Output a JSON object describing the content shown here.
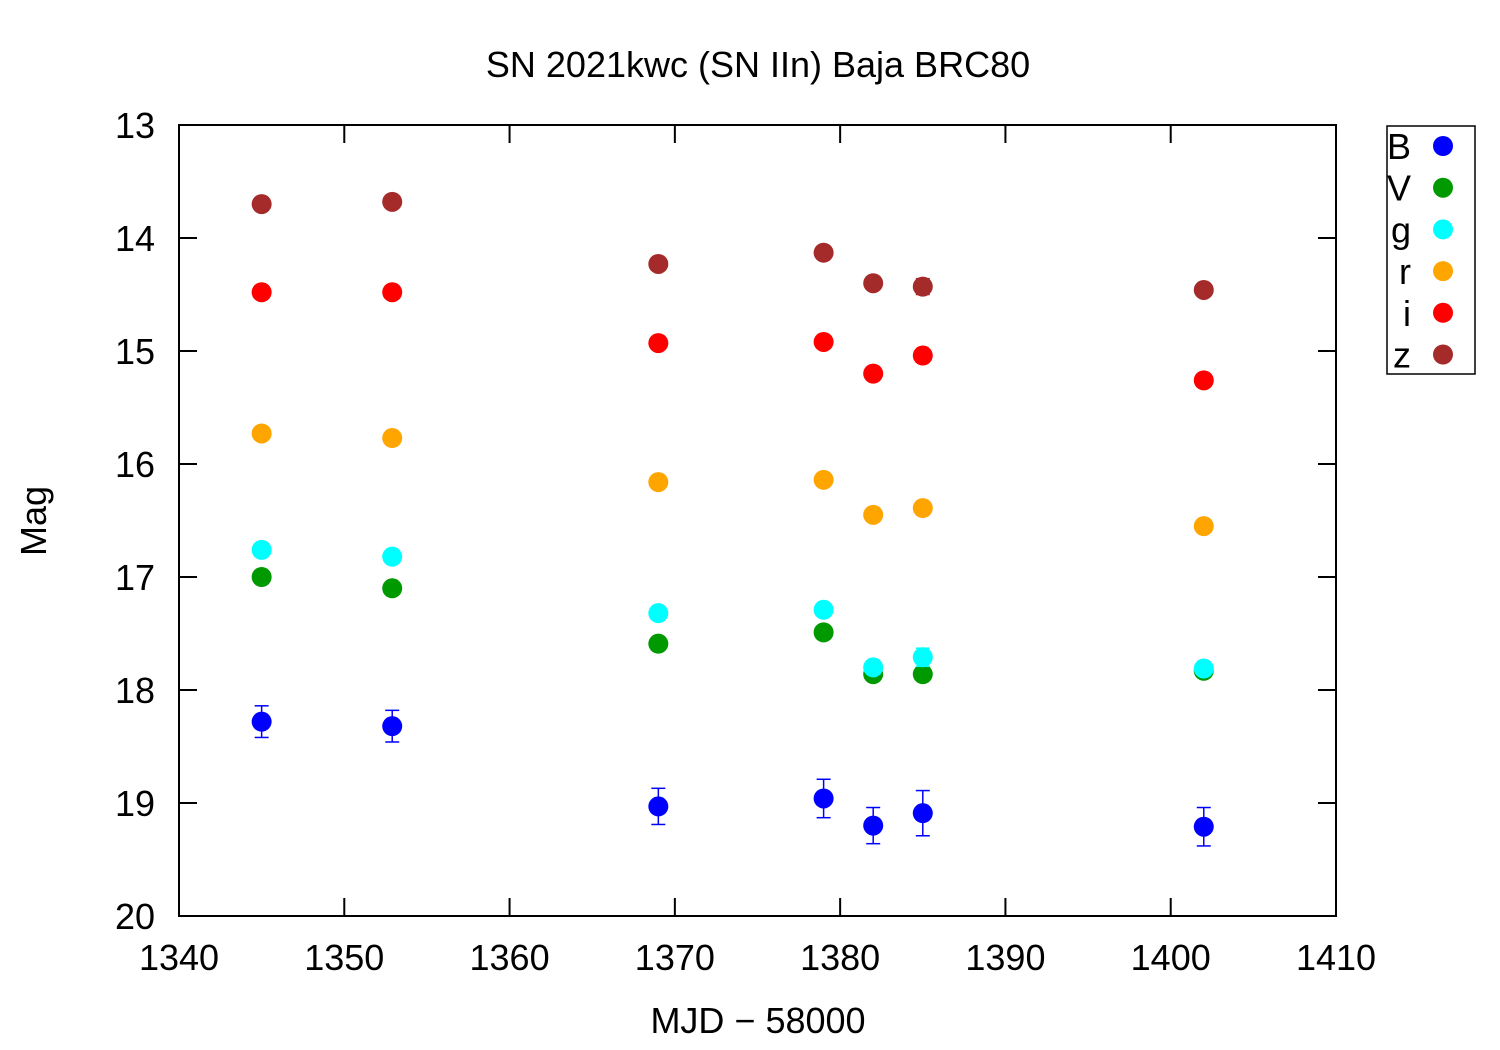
{
  "chart_data": {
    "type": "scatter",
    "title": "SN 2021kwc (SN IIn) Baja BRC80",
    "xlabel": "MJD − 58000",
    "ylabel": "Mag",
    "xlim": [
      1340,
      1410
    ],
    "ylim": [
      20,
      13
    ],
    "y_inverted": true,
    "x_ticks": [
      1340,
      1350,
      1360,
      1370,
      1380,
      1390,
      1400,
      1410
    ],
    "y_ticks": [
      13,
      14,
      15,
      16,
      17,
      18,
      19,
      20
    ],
    "legend_position": "outside-right-top",
    "grid": false,
    "series": [
      {
        "name": "B",
        "color": "#0000ff",
        "points": [
          {
            "x": 1345,
            "y": 18.28,
            "err": 0.14
          },
          {
            "x": 1352.9,
            "y": 18.32,
            "err": 0.14
          },
          {
            "x": 1369,
            "y": 19.03,
            "err": 0.16
          },
          {
            "x": 1379,
            "y": 18.96,
            "err": 0.17
          },
          {
            "x": 1382,
            "y": 19.2,
            "err": 0.16
          },
          {
            "x": 1385,
            "y": 19.09,
            "err": 0.2
          },
          {
            "x": 1402,
            "y": 19.21,
            "err": 0.17
          }
        ]
      },
      {
        "name": "V",
        "color": "#009900",
        "points": [
          {
            "x": 1345,
            "y": 17.0,
            "err": 0.03
          },
          {
            "x": 1352.9,
            "y": 17.1,
            "err": 0.03
          },
          {
            "x": 1369,
            "y": 17.59,
            "err": 0.04
          },
          {
            "x": 1379,
            "y": 17.49,
            "err": 0.04
          },
          {
            "x": 1382,
            "y": 17.86,
            "err": 0.05
          },
          {
            "x": 1385,
            "y": 17.86,
            "err": 0.05
          },
          {
            "x": 1402,
            "y": 17.83,
            "err": 0.05
          }
        ]
      },
      {
        "name": "g",
        "color": "#00ffff",
        "points": [
          {
            "x": 1345,
            "y": 16.76,
            "err": 0.03
          },
          {
            "x": 1352.9,
            "y": 16.82,
            "err": 0.03
          },
          {
            "x": 1369,
            "y": 17.32,
            "err": 0.04
          },
          {
            "x": 1379,
            "y": 17.29,
            "err": 0.04
          },
          {
            "x": 1382,
            "y": 17.8,
            "err": 0.05
          },
          {
            "x": 1385,
            "y": 17.71,
            "err": 0.08
          },
          {
            "x": 1402,
            "y": 17.81,
            "err": 0.05
          }
        ]
      },
      {
        "name": "r",
        "color": "#ffa500",
        "points": [
          {
            "x": 1345,
            "y": 15.73,
            "err": 0.02
          },
          {
            "x": 1352.9,
            "y": 15.77,
            "err": 0.02
          },
          {
            "x": 1369,
            "y": 16.16,
            "err": 0.02
          },
          {
            "x": 1379,
            "y": 16.14,
            "err": 0.02
          },
          {
            "x": 1382,
            "y": 16.45,
            "err": 0.03
          },
          {
            "x": 1385,
            "y": 16.39,
            "err": 0.03
          },
          {
            "x": 1402,
            "y": 16.55,
            "err": 0.03
          }
        ]
      },
      {
        "name": "i",
        "color": "#ff0000",
        "points": [
          {
            "x": 1345,
            "y": 14.48,
            "err": 0.02
          },
          {
            "x": 1352.9,
            "y": 14.48,
            "err": 0.02
          },
          {
            "x": 1369,
            "y": 14.93,
            "err": 0.02
          },
          {
            "x": 1379,
            "y": 14.92,
            "err": 0.02
          },
          {
            "x": 1382,
            "y": 15.2,
            "err": 0.03
          },
          {
            "x": 1385,
            "y": 15.04,
            "err": 0.04
          },
          {
            "x": 1402,
            "y": 15.26,
            "err": 0.03
          }
        ]
      },
      {
        "name": "z",
        "color": "#a52a2a",
        "points": [
          {
            "x": 1345,
            "y": 13.7,
            "err": 0.02
          },
          {
            "x": 1352.9,
            "y": 13.68,
            "err": 0.02
          },
          {
            "x": 1369,
            "y": 14.23,
            "err": 0.03
          },
          {
            "x": 1379,
            "y": 14.13,
            "err": 0.04
          },
          {
            "x": 1382,
            "y": 14.4,
            "err": 0.05
          },
          {
            "x": 1385,
            "y": 14.43,
            "err": 0.07
          },
          {
            "x": 1402,
            "y": 14.46,
            "err": 0.05
          }
        ]
      }
    ]
  }
}
